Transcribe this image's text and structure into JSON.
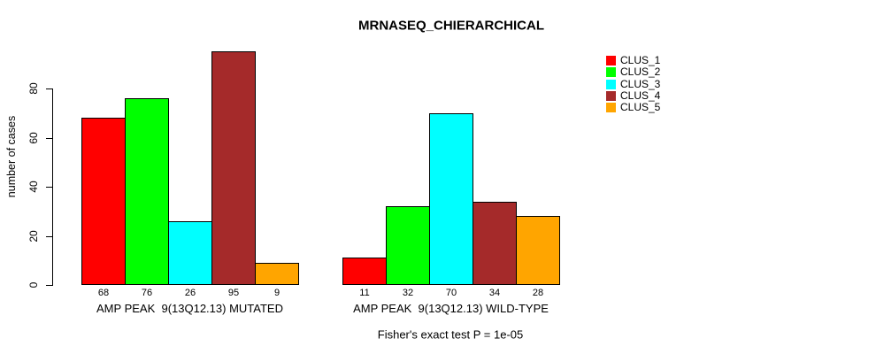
{
  "title": "MRNASEQ_CHIERARCHICAL",
  "y_axis": {
    "label": "number of cases",
    "ticks": [
      0,
      20,
      40,
      60,
      80
    ]
  },
  "annotation": "Fisher's exact test P = 1e-05",
  "chart_data": {
    "type": "bar",
    "title": "MRNASEQ_CHIERARCHICAL",
    "categories": [
      "AMP PEAK  9(13Q12.13) MUTATED",
      "AMP PEAK  9(13Q12.13) WILD-TYPE"
    ],
    "series": [
      {
        "name": "CLUS_1",
        "color": "#FF0000",
        "values": [
          68,
          11
        ]
      },
      {
        "name": "CLUS_2",
        "color": "#00FF00",
        "values": [
          76,
          32
        ]
      },
      {
        "name": "CLUS_3",
        "color": "#00FFFF",
        "values": [
          26,
          70
        ]
      },
      {
        "name": "CLUS_4",
        "color": "#A52A2A",
        "values": [
          95,
          34
        ]
      },
      {
        "name": "CLUS_5",
        "color": "#FFA500",
        "values": [
          9,
          28
        ]
      }
    ],
    "xlabel": "",
    "ylabel": "number of cases",
    "ylim": [
      0,
      80
    ],
    "grid": false,
    "bar_value_labels": true,
    "legend_position": "right",
    "annotation": "Fisher's exact test P = 1e-05"
  }
}
